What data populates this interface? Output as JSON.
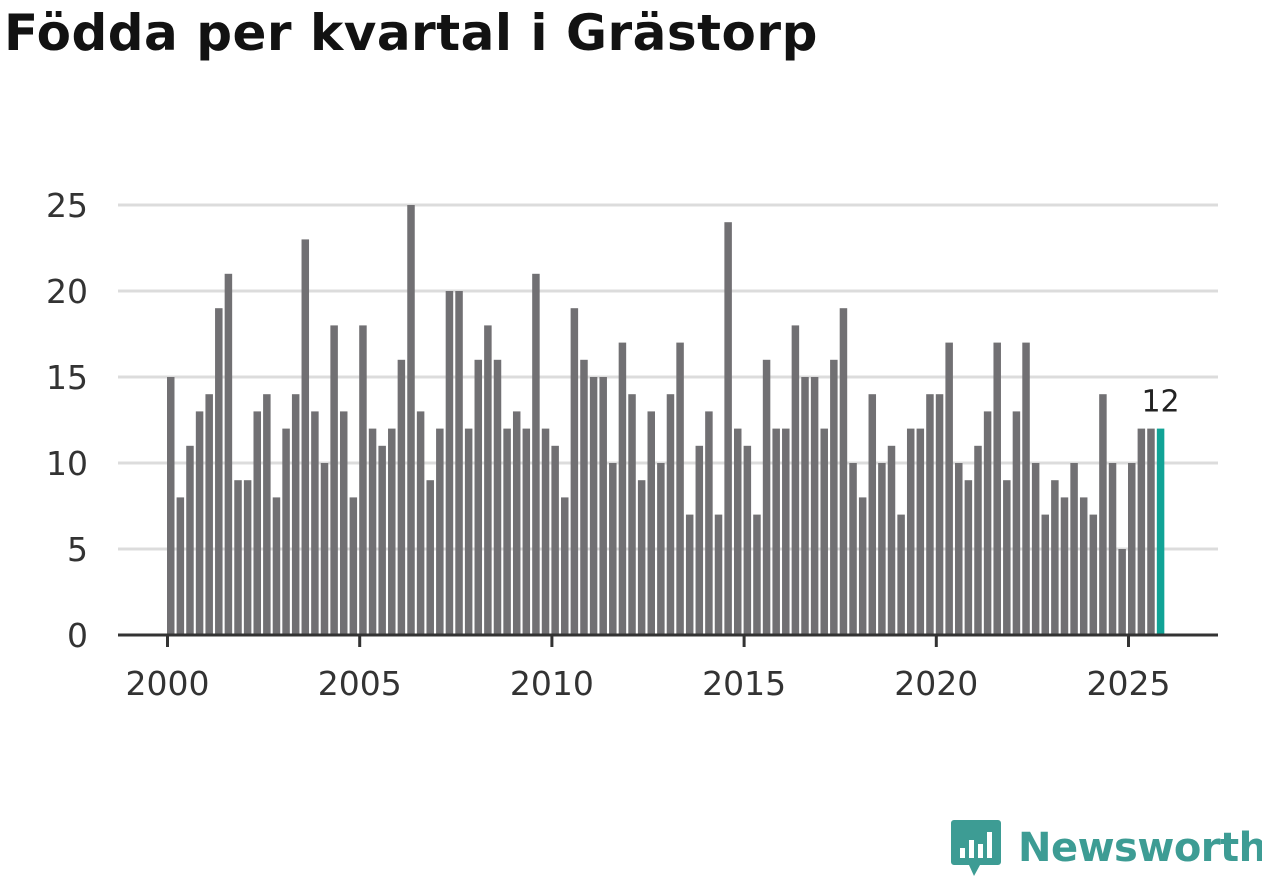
{
  "chart_data": {
    "type": "bar",
    "title": "Födda per kvartal i Grästorp",
    "xlabel": "",
    "ylabel": "",
    "ylim": [
      0,
      25
    ],
    "yticks": [
      0,
      5,
      10,
      15,
      20,
      25
    ],
    "xticks": [
      "2000",
      "2005",
      "2010",
      "2015",
      "2020",
      "2025"
    ],
    "x_start_year": 2000,
    "points_per_year": 4,
    "values": [
      15,
      8,
      11,
      13,
      14,
      19,
      21,
      9,
      9,
      13,
      14,
      8,
      12,
      14,
      23,
      13,
      10,
      18,
      13,
      8,
      18,
      12,
      11,
      12,
      16,
      25,
      13,
      9,
      12,
      20,
      20,
      12,
      16,
      18,
      16,
      12,
      13,
      12,
      21,
      12,
      11,
      8,
      19,
      16,
      15,
      15,
      10,
      17,
      14,
      9,
      13,
      10,
      14,
      17,
      7,
      11,
      13,
      7,
      24,
      12,
      11,
      7,
      16,
      12,
      12,
      18,
      15,
      15,
      12,
      16,
      19,
      10,
      8,
      14,
      10,
      11,
      7,
      12,
      12,
      14,
      14,
      17,
      10,
      9,
      11,
      13,
      17,
      9,
      13,
      17,
      10,
      7,
      9,
      8,
      10,
      8,
      7,
      14,
      10,
      5,
      10,
      12,
      12,
      12
    ],
    "highlight_index": 103,
    "highlight_label": "12",
    "colors": {
      "bar": "#717073",
      "highlight": "#11a396",
      "grid": "#dcdcdc",
      "axis": "#333333",
      "text": "#333333"
    }
  },
  "brand": {
    "name": "Newsworthy",
    "color": "#3d9c94"
  }
}
